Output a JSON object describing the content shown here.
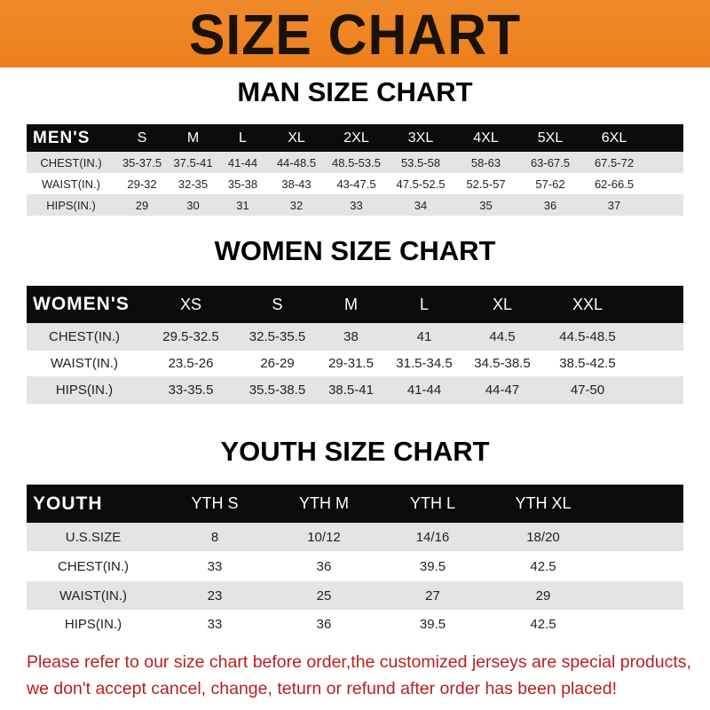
{
  "banner": {
    "title": "SIZE CHART",
    "color": "#ef841f"
  },
  "men": {
    "title": "MAN SIZE CHART",
    "headers": [
      "MEN'S",
      "S",
      "M",
      "L",
      "XL",
      "2XL",
      "3XL",
      "4XL",
      "5XL",
      "6XL"
    ],
    "rows": [
      [
        "CHEST(IN.)",
        "35-37.5",
        "37.5-41",
        "41-44",
        "44-48.5",
        "48.5-53.5",
        "53.5-58",
        "58-63",
        "63-67.5",
        "67.5-72"
      ],
      [
        "WAIST(IN.)",
        "29-32",
        "32-35",
        "35-38",
        "38-43",
        "43-47.5",
        "47.5-52.5",
        "52.5-57",
        "57-62",
        "62-66.5"
      ],
      [
        "HIPS(IN.)",
        "29",
        "30",
        "31",
        "32",
        "33",
        "34",
        "35",
        "36",
        "37"
      ]
    ]
  },
  "women": {
    "title": "WOMEN SIZE CHART",
    "headers": [
      "WOMEN'S",
      "XS",
      "S",
      "M",
      "L",
      "XL",
      "XXL"
    ],
    "rows": [
      [
        "CHEST(IN.)",
        "29.5-32.5",
        "32.5-35.5",
        "38",
        "41",
        "44.5",
        "44.5-48.5"
      ],
      [
        "WAIST(IN.)",
        "23.5-26",
        "26-29",
        "29-31.5",
        "31.5-34.5",
        "34.5-38.5",
        "38.5-42.5"
      ],
      [
        "HIPS(IN.)",
        "33-35.5",
        "35.5-38.5",
        "38.5-41",
        "41-44",
        "44-47",
        "47-50"
      ]
    ]
  },
  "youth": {
    "title": "YOUTH SIZE CHART",
    "headers": [
      "YOUTH",
      "YTH S",
      "YTH M",
      "YTH L",
      "YTH XL"
    ],
    "rows": [
      [
        "U.S.SIZE",
        "8",
        "10/12",
        "14/16",
        "18/20"
      ],
      [
        "CHEST(IN.)",
        "33",
        "36",
        "39.5",
        "42.5"
      ],
      [
        "WAIST(IN.)",
        "23",
        "25",
        "27",
        "29"
      ],
      [
        "HIPS(IN.)",
        "33",
        "36",
        "39.5",
        "42.5"
      ]
    ]
  },
  "footer": {
    "line1": "Please refer to our size chart before order,the customized jerseys are special products,",
    "line2": "we don't accept cancel, change, teturn or refund after order has been placed!",
    "color": "#b8201e"
  }
}
